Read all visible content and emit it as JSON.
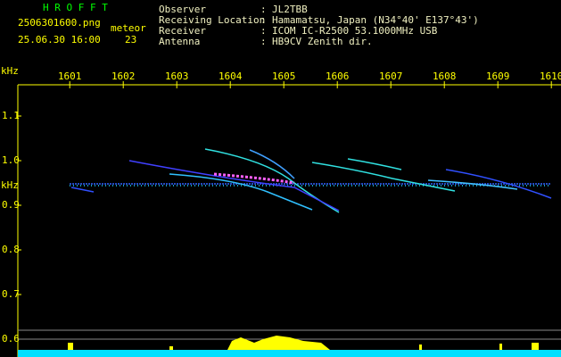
{
  "app": "H R O F F T",
  "file": "2506301600.png",
  "meteor_label": "meteor",
  "datetime": "25.06.30 16:00",
  "meteor_count": 23,
  "info": [
    {
      "label": "Observer",
      "value": "JL2TBB"
    },
    {
      "label": "Receiving Location",
      "value": "Hamamatsu, Japan (N34°40' E137°43')"
    },
    {
      "label": "Receiver",
      "value": "ICOM IC-R2500 53.1000MHz USB"
    },
    {
      "label": "Antenna",
      "value": "HB9CV Zenith dir."
    }
  ],
  "separator": ":",
  "axis": {
    "unit": "kHz",
    "xlim": [
      1600.03,
      1610.18
    ],
    "xticks": [
      1601,
      1602,
      1603,
      1604,
      1605,
      1606,
      1607,
      1608,
      1609,
      1610
    ],
    "ylim": [
      0.56,
      1.17
    ],
    "yticks": [
      1.1,
      {
        "value": 1,
        "label": "1.0"
      },
      0.9,
      0.8,
      0.7,
      0.6
    ]
  }
}
